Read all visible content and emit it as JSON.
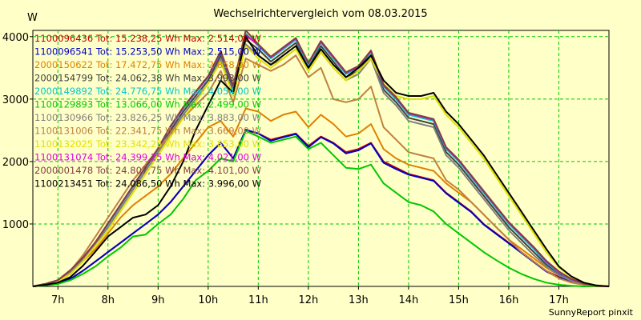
{
  "chart_data": {
    "type": "line",
    "title": "Wechselrichtervergleich vom 08.03.2015",
    "ylabel": "W",
    "ylim": [
      0,
      4100
    ],
    "xlim": [
      6.5,
      18
    ],
    "grid": true,
    "footer": "SunnyReport pinxit",
    "xticks": [
      {
        "v": 7,
        "label": "7h"
      },
      {
        "v": 8,
        "label": "8h"
      },
      {
        "v": 9,
        "label": "9h"
      },
      {
        "v": 10,
        "label": "10h"
      },
      {
        "v": 11,
        "label": "11h"
      },
      {
        "v": 12,
        "label": "12h"
      },
      {
        "v": 13,
        "label": "13h"
      },
      {
        "v": 14,
        "label": "14h"
      },
      {
        "v": 15,
        "label": "15h"
      },
      {
        "v": 16,
        "label": "16h"
      },
      {
        "v": 17,
        "label": "17h"
      }
    ],
    "yticks": [
      1000,
      2000,
      3000,
      4000
    ],
    "x": [
      6.5,
      6.75,
      7,
      7.25,
      7.5,
      7.75,
      8,
      8.25,
      8.5,
      8.75,
      9,
      9.25,
      9.5,
      9.75,
      10,
      10.25,
      10.5,
      10.75,
      11,
      11.25,
      11.5,
      11.75,
      12,
      12.25,
      12.5,
      12.75,
      13,
      13.25,
      13.5,
      13.75,
      14,
      14.25,
      14.5,
      14.75,
      15,
      15.25,
      15.5,
      15.75,
      16,
      16.25,
      16.5,
      16.75,
      17,
      17.25,
      17.5,
      17.75,
      18
    ],
    "series": [
      {
        "legend": "1100096436 Tot: 15.238,25 Wh Max: 2.514,00 W",
        "color": "#c80000",
        "values": [
          0,
          20,
          50,
          120,
          250,
          400,
          550,
          700,
          850,
          1000,
          1150,
          1350,
          1600,
          1850,
          2100,
          2300,
          2050,
          2500,
          2450,
          2350,
          2400,
          2450,
          2250,
          2400,
          2300,
          2150,
          2200,
          2300,
          2000,
          1900,
          1800,
          1750,
          1700,
          1500,
          1350,
          1200,
          1000,
          850,
          700,
          550,
          400,
          250,
          150,
          80,
          30,
          10,
          0
        ]
      },
      {
        "legend": "1100096541 Tot: 15.253,50 Wh Max: 2.515,00 W",
        "color": "#0000c8",
        "values": [
          0,
          20,
          50,
          120,
          250,
          400,
          550,
          700,
          850,
          1000,
          1150,
          1350,
          1600,
          1850,
          2100,
          2300,
          2050,
          2510,
          2450,
          2330,
          2390,
          2440,
          2230,
          2390,
          2290,
          2130,
          2180,
          2290,
          1980,
          1880,
          1790,
          1740,
          1690,
          1490,
          1340,
          1190,
          990,
          840,
          690,
          540,
          390,
          240,
          140,
          80,
          30,
          10,
          0
        ]
      },
      {
        "legend": "2000150622 Tot: 17.472,75 Wh Max: 2.858,00 W",
        "color": "#e08000",
        "values": [
          0,
          30,
          80,
          200,
          400,
          600,
          850,
          1100,
          1300,
          1450,
          1600,
          1800,
          2050,
          2300,
          2550,
          2650,
          2400,
          2850,
          2800,
          2650,
          2750,
          2800,
          2550,
          2750,
          2600,
          2400,
          2450,
          2600,
          2200,
          2050,
          1950,
          1900,
          1850,
          1650,
          1500,
          1350,
          1150,
          950,
          750,
          600,
          450,
          300,
          180,
          90,
          35,
          10,
          0
        ]
      },
      {
        "legend": "2000154799 Tot: 24.062,38 Wh Max: 3.993,00 W",
        "color": "#404040",
        "values": [
          0,
          40,
          100,
          250,
          450,
          700,
          1000,
          1300,
          1600,
          1900,
          2200,
          2500,
          2800,
          3050,
          3300,
          3700,
          3150,
          3950,
          3800,
          3600,
          3750,
          3900,
          3500,
          3850,
          3600,
          3350,
          3450,
          3700,
          3150,
          2950,
          2700,
          2650,
          2600,
          2150,
          1950,
          1700,
          1450,
          1200,
          950,
          750,
          550,
          350,
          200,
          100,
          40,
          10,
          0
        ]
      },
      {
        "legend": "2000149892 Tot: 24.776,75 Wh Max: 4.054,00 W",
        "color": "#00c8c8",
        "values": [
          0,
          40,
          100,
          250,
          450,
          700,
          1000,
          1300,
          1600,
          1900,
          2200,
          2550,
          2850,
          3100,
          3350,
          3750,
          3200,
          4050,
          3850,
          3650,
          3800,
          3950,
          3550,
          3900,
          3650,
          3400,
          3500,
          3750,
          3200,
          3000,
          2750,
          2700,
          2650,
          2200,
          2000,
          1750,
          1500,
          1250,
          1000,
          800,
          600,
          380,
          220,
          110,
          40,
          10,
          0
        ]
      },
      {
        "legend": "1100129893 Tot: 13.066,00 Wh Max: 2.499,00 W",
        "color": "#00c800",
        "values": [
          0,
          15,
          40,
          100,
          200,
          320,
          480,
          620,
          800,
          830,
          1000,
          1150,
          1400,
          1700,
          1850,
          2050,
          2000,
          2490,
          2400,
          2300,
          2350,
          2400,
          2200,
          2300,
          2100,
          1900,
          1880,
          1950,
          1650,
          1500,
          1350,
          1300,
          1200,
          1000,
          850,
          700,
          550,
          420,
          300,
          200,
          120,
          60,
          25,
          10,
          0,
          0,
          0
        ]
      },
      {
        "legend": "1100130966 Tot: 23.826,25 Wh Max: 3.883,00 W",
        "color": "#808080",
        "values": [
          0,
          35,
          90,
          230,
          430,
          680,
          950,
          1250,
          1550,
          1850,
          2150,
          2450,
          2750,
          3000,
          3250,
          3650,
          3100,
          3880,
          3700,
          3550,
          3650,
          3800,
          3450,
          3750,
          3500,
          3300,
          3400,
          3650,
          3100,
          2900,
          2650,
          2600,
          2550,
          2100,
          1900,
          1650,
          1400,
          1150,
          900,
          700,
          500,
          320,
          180,
          90,
          35,
          10,
          0
        ]
      },
      {
        "legend": "1100131006 Tot: 22.341,75 Wh Max: 3.669,00 W",
        "color": "#c08040",
        "values": [
          0,
          35,
          90,
          250,
          500,
          800,
          1100,
          1400,
          1700,
          1950,
          2200,
          2450,
          2700,
          2900,
          3100,
          3450,
          2950,
          3650,
          3550,
          3450,
          3550,
          3700,
          3350,
          3500,
          3000,
          2950,
          3000,
          3200,
          2550,
          2350,
          2150,
          2100,
          2050,
          1700,
          1550,
          1350,
          1150,
          950,
          750,
          550,
          400,
          250,
          130,
          60,
          25,
          5,
          0
        ]
      },
      {
        "legend": "1100132025 Tot: 23.342,25 Wh Max: 3.853,00 W",
        "color": "#e0e000",
        "values": [
          0,
          30,
          80,
          200,
          400,
          650,
          900,
          1200,
          1500,
          1800,
          2100,
          2400,
          2700,
          2950,
          3250,
          3600,
          3050,
          3850,
          3650,
          3500,
          3650,
          3800,
          3450,
          3750,
          3500,
          3300,
          3450,
          3650,
          3250,
          3050,
          3000,
          3000,
          3050,
          2750,
          2550,
          2300,
          2050,
          1750,
          1450,
          1150,
          850,
          550,
          300,
          150,
          60,
          15,
          0
        ]
      },
      {
        "legend": "1100131074 Tot: 24.399,25 Wh Max: 4.021,00 W",
        "color": "#e000e0",
        "values": [
          0,
          40,
          100,
          260,
          460,
          710,
          1010,
          1310,
          1610,
          1910,
          2210,
          2560,
          2860,
          3110,
          3360,
          3760,
          3210,
          4020,
          3870,
          3670,
          3820,
          3970,
          3570,
          3920,
          3670,
          3420,
          3520,
          3770,
          3220,
          3020,
          2770,
          2720,
          2670,
          2220,
          2020,
          1770,
          1520,
          1270,
          1020,
          820,
          620,
          400,
          230,
          115,
          45,
          10,
          0
        ]
      },
      {
        "legend": "2000001478 Tot: 24.807,75 Wh Max: 4.101,00 W",
        "color": "#804040",
        "values": [
          0,
          40,
          100,
          260,
          460,
          710,
          1010,
          1310,
          1610,
          1910,
          2210,
          2570,
          2870,
          3120,
          3370,
          3770,
          3220,
          4100,
          3880,
          3680,
          3830,
          3980,
          3580,
          3930,
          3680,
          3430,
          3530,
          3780,
          3230,
          3030,
          2780,
          2730,
          2680,
          2230,
          2030,
          1780,
          1530,
          1280,
          1030,
          830,
          630,
          410,
          240,
          120,
          45,
          10,
          0
        ]
      },
      {
        "legend": "1100213451 Tot: 24.086,50 Wh Max: 3.996,00 W",
        "color": "#000000",
        "values": [
          0,
          25,
          60,
          150,
          330,
          560,
          800,
          950,
          1100,
          1150,
          1300,
          1600,
          2000,
          2500,
          2900,
          3300,
          3100,
          3996,
          3700,
          3550,
          3700,
          3850,
          3500,
          3800,
          3550,
          3350,
          3500,
          3700,
          3300,
          3100,
          3050,
          3050,
          3100,
          2800,
          2600,
          2350,
          2100,
          1800,
          1500,
          1200,
          900,
          600,
          320,
          160,
          60,
          15,
          0
        ]
      }
    ]
  }
}
